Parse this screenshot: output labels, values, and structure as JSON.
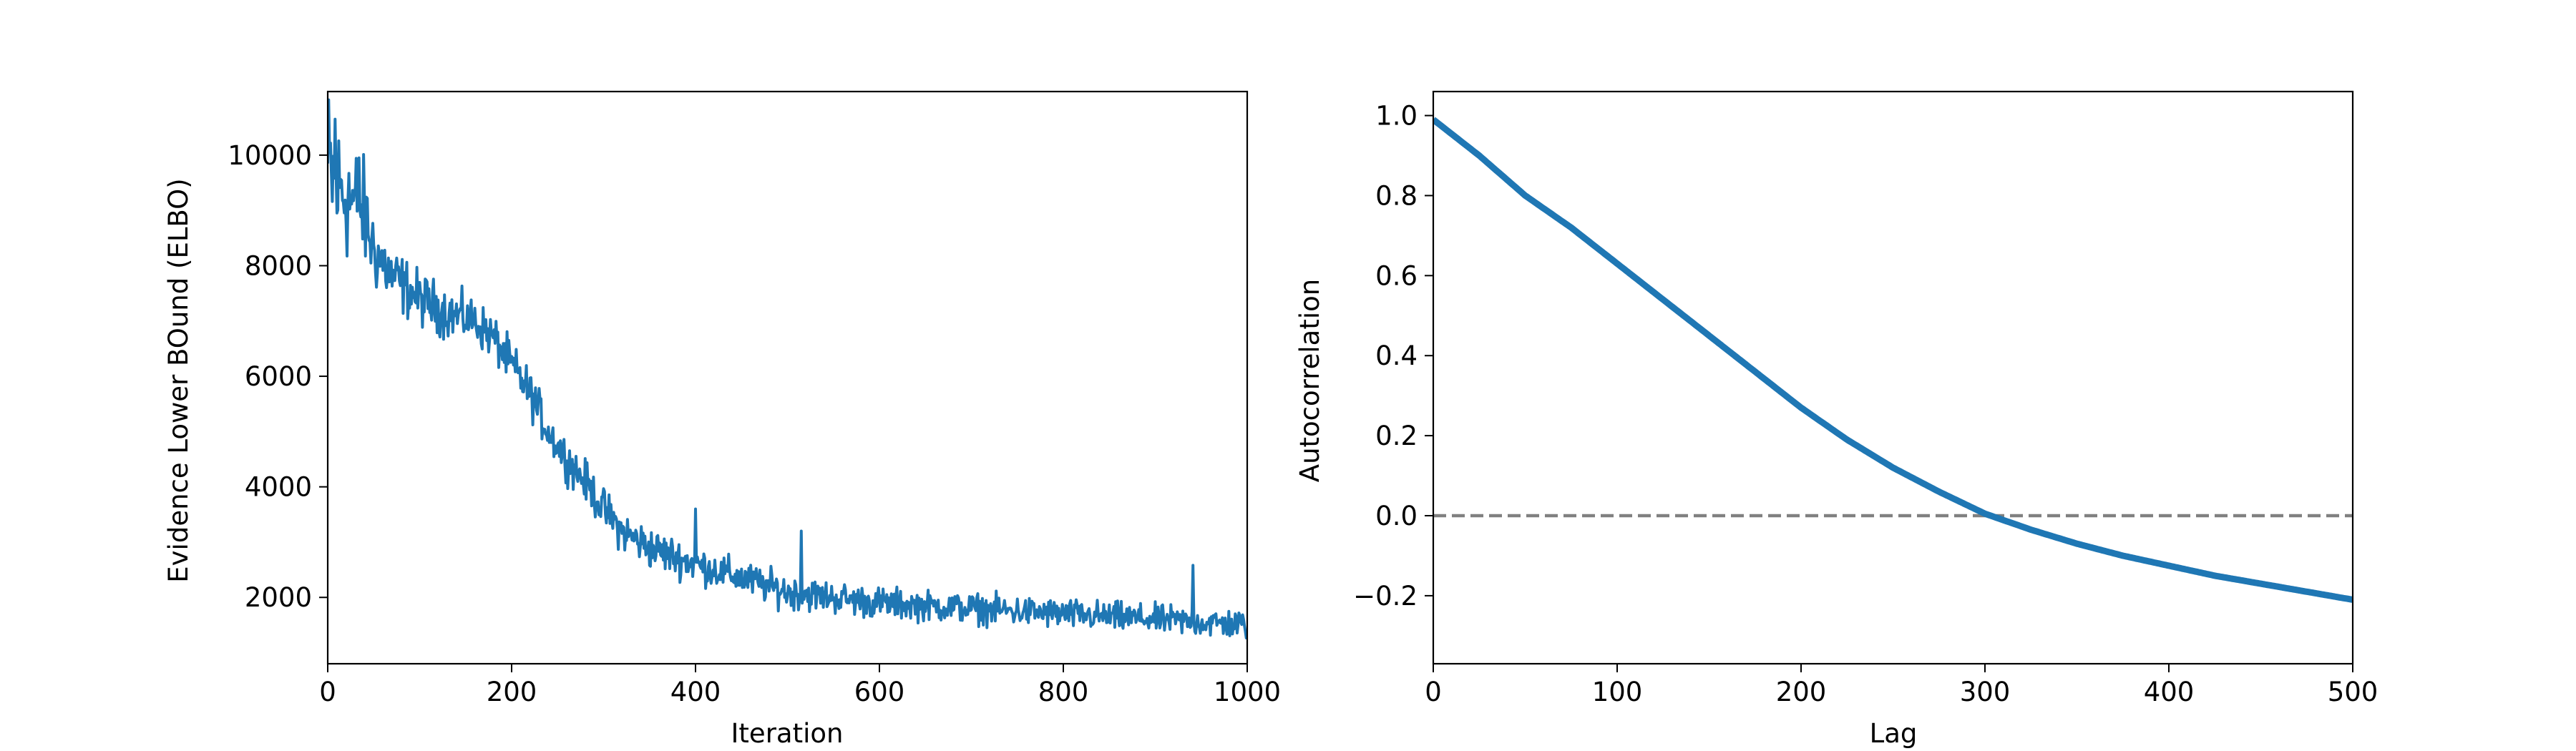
{
  "chart_data": [
    {
      "type": "line",
      "title": "",
      "xlabel": "Iteration",
      "ylabel": "Evidence Lower BOund (ELBO)",
      "xlim": [
        0,
        1000
      ],
      "ylim": [
        800,
        11150
      ],
      "xticks": [
        0,
        200,
        400,
        600,
        800,
        1000
      ],
      "yticks": [
        2000,
        4000,
        6000,
        8000,
        10000
      ],
      "grid": false,
      "legend": "none",
      "color": "#1f77b4",
      "trend": {
        "x": [
          0,
          10,
          20,
          30,
          40,
          50,
          70,
          100,
          130,
          160,
          180,
          200,
          220,
          240,
          260,
          280,
          300,
          320,
          350,
          400,
          450,
          500,
          550,
          600,
          650,
          700,
          750,
          800,
          850,
          900,
          950,
          1000
        ],
        "y": [
          9700,
          9400,
          9300,
          9100,
          8900,
          8300,
          7800,
          7400,
          7150,
          7000,
          6700,
          6200,
          5700,
          5000,
          4500,
          4100,
          3600,
          3200,
          2900,
          2600,
          2350,
          2100,
          2000,
          1900,
          1850,
          1800,
          1750,
          1700,
          1650,
          1600,
          1550,
          1500
        ]
      },
      "noise": [
        2000,
        1600,
        1500,
        1400,
        1200,
        900,
        700,
        600,
        550,
        500,
        500,
        500,
        500,
        450,
        450,
        450,
        450,
        450,
        450,
        400,
        380,
        380,
        350,
        350,
        330,
        330,
        330,
        330,
        330,
        320,
        330,
        330
      ],
      "spikes": [
        {
          "x": 8,
          "y": 10650
        },
        {
          "x": 34,
          "y": 9950
        },
        {
          "x": 400,
          "y": 3600
        },
        {
          "x": 515,
          "y": 3200
        },
        {
          "x": 941,
          "y": 2580
        }
      ]
    },
    {
      "type": "line",
      "title": "",
      "xlabel": "Lag",
      "ylabel": "Autocorrelation",
      "xlim": [
        0,
        500
      ],
      "ylim": [
        -0.37,
        1.06
      ],
      "xticks": [
        0,
        100,
        200,
        300,
        400,
        500
      ],
      "yticks": [
        -0.2,
        0.0,
        0.2,
        0.4,
        0.6,
        0.8,
        1.0
      ],
      "grid": false,
      "legend": "none",
      "color": "#1f77b4",
      "reference_line": {
        "y": 0.0,
        "style": "dashed",
        "color": "#808080"
      },
      "series": [
        {
          "x": [
            0,
            25,
            50,
            75,
            100,
            125,
            150,
            175,
            200,
            225,
            250,
            275,
            300,
            325,
            350,
            375,
            400,
            425,
            450,
            475,
            500
          ],
          "y": [
            0.99,
            0.9,
            0.8,
            0.72,
            0.63,
            0.54,
            0.45,
            0.36,
            0.27,
            0.19,
            0.12,
            0.06,
            0.005,
            -0.035,
            -0.07,
            -0.1,
            -0.125,
            -0.15,
            -0.17,
            -0.19,
            -0.21
          ]
        }
      ]
    }
  ]
}
